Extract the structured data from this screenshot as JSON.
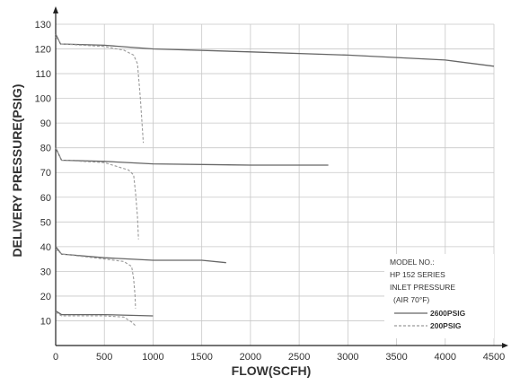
{
  "chart_data": {
    "type": "line",
    "xlabel": "FLOW(SCFH)",
    "ylabel": "DELIVERY PRESSURE(PSIG)",
    "xlim": [
      0,
      4500
    ],
    "ylim": [
      0,
      130
    ],
    "x_ticks": [
      0,
      500,
      1000,
      1500,
      2000,
      2500,
      3000,
      3500,
      4000,
      4500
    ],
    "y_ticks": [
      10,
      20,
      30,
      40,
      50,
      60,
      70,
      80,
      90,
      100,
      110,
      120,
      130
    ],
    "grid": true,
    "legend": {
      "placement": "bottom-right",
      "lines": [
        "MODEL NO.:",
        "HP 152 SERIES",
        "INLET PRESSURE",
        "(AIR 70°F)"
      ],
      "entries": [
        "2600PSIG",
        "200PSIG"
      ]
    },
    "series": [
      {
        "name": "2600PSIG",
        "style": "solid",
        "color": "#666666",
        "points": [
          [
            0,
            126
          ],
          [
            50,
            122
          ],
          [
            500,
            121.5
          ],
          [
            1000,
            120
          ],
          [
            2000,
            118.8
          ],
          [
            3000,
            117.5
          ],
          [
            4000,
            115.5
          ],
          [
            4500,
            113
          ]
        ]
      },
      {
        "name": "200PSIG",
        "style": "dashed",
        "color": "#9a9a9a",
        "points": [
          [
            0,
            125
          ],
          [
            60,
            122
          ],
          [
            500,
            121
          ],
          [
            700,
            119.5
          ],
          [
            800,
            117.5
          ],
          [
            840,
            114
          ],
          [
            870,
            100
          ],
          [
            900,
            82
          ]
        ]
      },
      {
        "name": "2600PSIG",
        "style": "solid",
        "color": "#666666",
        "points": [
          [
            0,
            80
          ],
          [
            60,
            75
          ],
          [
            500,
            74.5
          ],
          [
            1000,
            73.5
          ],
          [
            2000,
            73
          ],
          [
            2800,
            73
          ]
        ]
      },
      {
        "name": "200PSIG",
        "style": "dashed",
        "color": "#9a9a9a",
        "points": [
          [
            0,
            80
          ],
          [
            60,
            75
          ],
          [
            500,
            74
          ],
          [
            750,
            71
          ],
          [
            800,
            69
          ],
          [
            820,
            62
          ],
          [
            840,
            52
          ],
          [
            850,
            43
          ]
        ]
      },
      {
        "name": "2600PSIG",
        "style": "solid",
        "color": "#666666",
        "points": [
          [
            0,
            40
          ],
          [
            60,
            37
          ],
          [
            500,
            35.5
          ],
          [
            1000,
            34.5
          ],
          [
            1500,
            34.5
          ],
          [
            1750,
            33.5
          ]
        ]
      },
      {
        "name": "200PSIG",
        "style": "dashed",
        "color": "#9a9a9a",
        "points": [
          [
            0,
            39
          ],
          [
            60,
            37
          ],
          [
            500,
            35
          ],
          [
            700,
            34
          ],
          [
            780,
            32
          ],
          [
            800,
            27
          ],
          [
            815,
            20
          ],
          [
            820,
            15
          ]
        ]
      },
      {
        "name": "2600PSIG",
        "style": "solid",
        "color": "#666666",
        "points": [
          [
            0,
            14
          ],
          [
            60,
            12.5
          ],
          [
            500,
            12.5
          ],
          [
            1000,
            12
          ]
        ]
      },
      {
        "name": "200PSIG",
        "style": "dashed",
        "color": "#9a9a9a",
        "points": [
          [
            0,
            13.5
          ],
          [
            60,
            12
          ],
          [
            500,
            12
          ],
          [
            700,
            11.5
          ],
          [
            780,
            9.5
          ],
          [
            820,
            8
          ]
        ]
      }
    ]
  }
}
